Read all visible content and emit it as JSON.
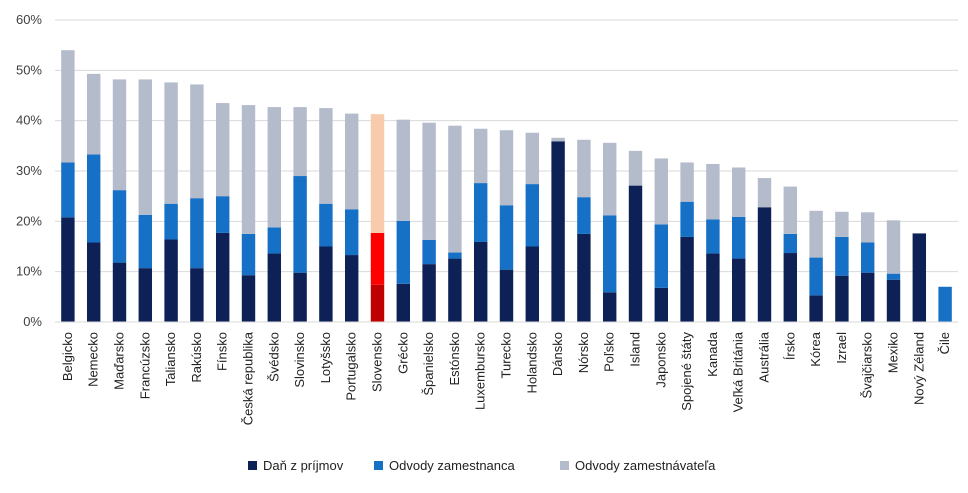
{
  "chart_data": {
    "type": "bar",
    "stacked": true,
    "title": "",
    "xlabel": "",
    "ylabel": "",
    "ylim": [
      0,
      60
    ],
    "yticks": [
      "0%",
      "10%",
      "20%",
      "30%",
      "40%",
      "50%",
      "60%"
    ],
    "grid": true,
    "legend_position": "bottom",
    "categories": [
      "Belgicko",
      "Nemecko",
      "Maďarsko",
      "Francúzsko",
      "Taliansko",
      "Rakúsko",
      "Fínsko",
      "Česká republika",
      "Švédsko",
      "Slovinsko",
      "Lotyšsko",
      "Portugalsko",
      "Slovensko",
      "Grécko",
      "Španielsko",
      "Estónsko",
      "Luxembursko",
      "Turecko",
      "Holandsko",
      "Dánsko",
      "Nórsko",
      "Poľsko",
      "Island",
      "Japonsko",
      "Spojené štáty",
      "Kanada",
      "Veľká Británia",
      "Austrália",
      "Írsko",
      "Kórea",
      "Izrael",
      "Švajčiarsko",
      "Mexiko",
      "Nový Zéland",
      "Čile"
    ],
    "highlight_category": "Slovensko",
    "series": [
      {
        "name": "Daň z príjmov",
        "color": "#0e2156",
        "highlight_color": "#c00000",
        "values": [
          20.8,
          15.8,
          11.8,
          10.7,
          16.4,
          10.7,
          17.7,
          9.3,
          13.6,
          9.8,
          15.0,
          13.3,
          7.4,
          7.6,
          11.5,
          12.6,
          15.9,
          10.4,
          15.0,
          35.9,
          17.5,
          5.9,
          27.1,
          6.8,
          16.9,
          13.6,
          12.6,
          22.8,
          13.7,
          5.3,
          9.2,
          9.8,
          8.4,
          17.6,
          0.0
        ]
      },
      {
        "name": "Odvody zamestnanca",
        "color": "#1670c5",
        "highlight_color": "#ff0000",
        "values": [
          10.9,
          17.5,
          14.4,
          10.6,
          7.1,
          13.9,
          7.3,
          8.2,
          5.2,
          19.2,
          8.5,
          9.1,
          10.3,
          12.5,
          4.8,
          1.2,
          11.7,
          12.8,
          12.4,
          0.0,
          7.3,
          15.3,
          0.0,
          12.6,
          7.0,
          6.8,
          8.3,
          0.0,
          3.8,
          7.5,
          7.7,
          6.0,
          1.2,
          0.0,
          7.0
        ]
      },
      {
        "name": "Odvody zamestnávateľa",
        "color": "#b4bccc",
        "highlight_color": "#f8cbad",
        "values": [
          22.3,
          16.0,
          22.0,
          26.9,
          24.1,
          22.6,
          18.5,
          25.6,
          23.9,
          13.7,
          19.0,
          19.0,
          23.6,
          20.1,
          23.3,
          25.2,
          10.8,
          14.9,
          10.2,
          0.7,
          11.4,
          14.4,
          6.9,
          13.1,
          7.8,
          11.0,
          9.8,
          5.8,
          9.4,
          9.3,
          5.0,
          6.0,
          10.6,
          0.0,
          0.0
        ]
      }
    ]
  }
}
